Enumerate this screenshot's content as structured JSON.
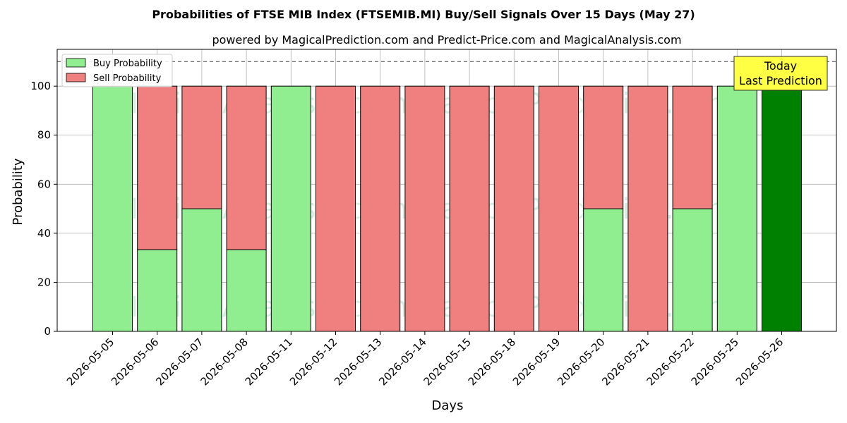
{
  "chart_data": {
    "type": "bar",
    "stacked": true,
    "title": "Probabilities of FTSE MIB Index (FTSEMIB.MI) Buy/Sell Signals Over 15 Days (May 27)",
    "subtitle": "powered by MagicalPrediction.com and Predict-Price.com and MagicalAnalysis.com",
    "xlabel": "Days",
    "ylabel": "Probability",
    "ylim": [
      0,
      115
    ],
    "yticks": [
      0,
      20,
      40,
      60,
      80,
      100
    ],
    "reference_line": 110,
    "grid": true,
    "legend_position": "top-left",
    "categories": [
      "2026-05-05",
      "2026-05-06",
      "2026-05-07",
      "2026-05-08",
      "2026-05-11",
      "2026-05-12",
      "2026-05-13",
      "2026-05-14",
      "2026-05-15",
      "2026-05-18",
      "2026-05-19",
      "2026-05-20",
      "2026-05-21",
      "2026-05-22",
      "2026-05-25",
      "2026-05-26"
    ],
    "series": [
      {
        "name": "Buy Probability",
        "color": "#90ee90",
        "values": [
          100,
          33.3,
          50,
          33.3,
          100,
          0,
          0,
          0,
          0,
          0,
          0,
          50,
          0,
          50,
          100,
          100
        ]
      },
      {
        "name": "Sell Probability",
        "color": "#f08080",
        "values": [
          0,
          66.7,
          50,
          66.7,
          0,
          100,
          100,
          100,
          100,
          100,
          100,
          50,
          100,
          50,
          0,
          0
        ]
      }
    ],
    "highlight": {
      "index": 15,
      "color": "#008000"
    },
    "annotation": {
      "lines": [
        "Today",
        "Last Prediction"
      ],
      "background": "#ffff44"
    },
    "watermark": "MagicalAnalysis.com     MagicalPrediction.com"
  }
}
